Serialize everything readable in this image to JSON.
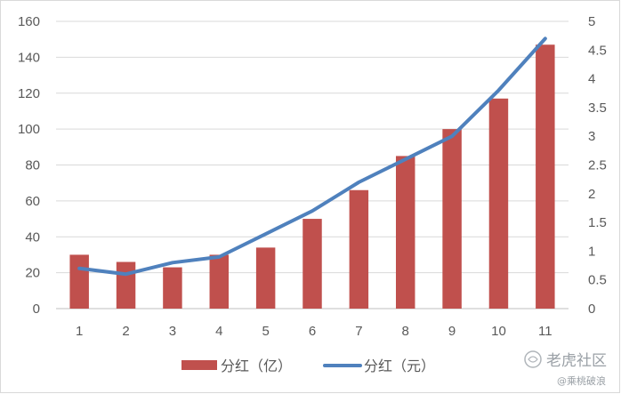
{
  "chart_data": {
    "type": "bar",
    "categories": [
      "1",
      "2",
      "3",
      "4",
      "5",
      "6",
      "7",
      "8",
      "9",
      "10",
      "11"
    ],
    "series": [
      {
        "name": "分红（亿）",
        "type": "bar",
        "axis": "left",
        "color": "#c0504d",
        "values": [
          30,
          26,
          23,
          30,
          34,
          50,
          66,
          85,
          100,
          117,
          147
        ]
      },
      {
        "name": "分红（元）",
        "type": "line",
        "axis": "right",
        "color": "#4f81bd",
        "values": [
          0.7,
          0.6,
          0.8,
          0.9,
          1.3,
          1.7,
          2.2,
          2.6,
          3.0,
          3.8,
          4.7
        ]
      }
    ],
    "y_left": {
      "min": 0,
      "max": 160,
      "ticks": [
        "0",
        "20",
        "40",
        "60",
        "80",
        "100",
        "120",
        "140",
        "160"
      ]
    },
    "y_right": {
      "min": 0,
      "max": 5,
      "ticks": [
        "0",
        "0.5",
        "1",
        "1.5",
        "2",
        "2.5",
        "3",
        "3.5",
        "4",
        "4.5",
        "5"
      ]
    },
    "grid": true,
    "legend_position": "bottom"
  },
  "watermark": {
    "main": "老虎社区",
    "sub": "@乘桃破浪",
    "icon": "tiger-logo-icon"
  }
}
